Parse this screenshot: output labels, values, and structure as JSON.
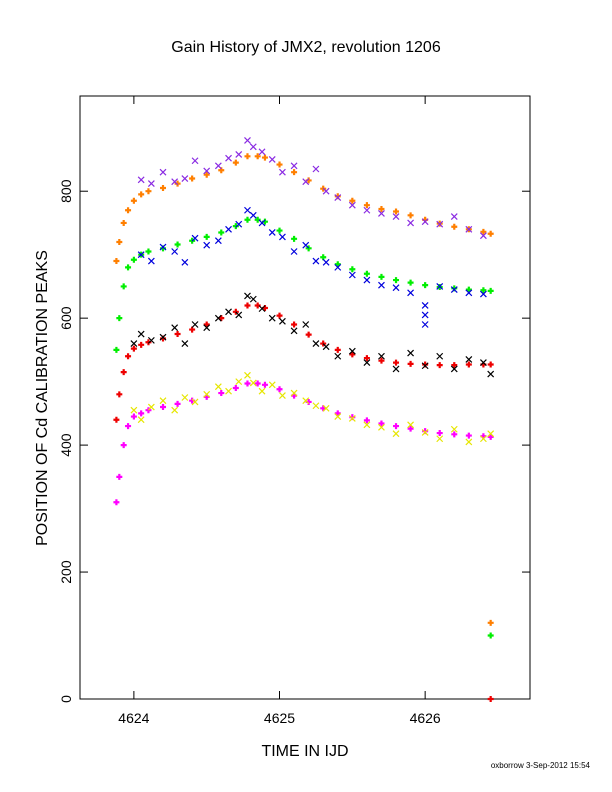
{
  "chart_data": {
    "type": "scatter",
    "title": "Gain History of JMX2, revolution 1206",
    "xlabel": "TIME IN IJD",
    "ylabel": "POSITION OF Cd CALIBRATION PEAKS",
    "xlim": [
      4623.63,
      4626.72
    ],
    "ylim": [
      0,
      950
    ],
    "x_ticks": [
      4624,
      4625,
      4626
    ],
    "x_tick_labels": [
      "4624",
      "4625",
      "4626"
    ],
    "y_ticks": [
      0,
      200,
      400,
      600,
      800
    ],
    "y_tick_labels": [
      "0",
      "200",
      "400",
      "600",
      "800"
    ],
    "grid": false,
    "legend": "none",
    "footer": "oxborrow  3-Sep-2012 15:54",
    "series": [
      {
        "color": "#ff7f00",
        "marker": "plus",
        "x": [
          4623.88,
          4623.9,
          4623.93,
          4623.96,
          4624.0,
          4624.05,
          4624.1,
          4624.2,
          4624.3,
          4624.4,
          4624.5,
          4624.6,
          4624.7,
          4624.78,
          4624.85,
          4624.9,
          4625.0,
          4625.1,
          4625.2,
          4625.3,
          4625.4,
          4625.5,
          4625.6,
          4625.7,
          4625.8,
          4625.9,
          4626.0,
          4626.1,
          4626.2,
          4626.3,
          4626.4,
          4626.45
        ],
        "y": [
          690,
          720,
          750,
          770,
          785,
          795,
          800,
          805,
          812,
          820,
          826,
          833,
          845,
          855,
          855,
          853,
          842,
          830,
          817,
          804,
          792,
          785,
          778,
          772,
          768,
          762,
          755,
          749,
          744,
          740,
          736,
          733
        ]
      },
      {
        "color": "#8a2be2",
        "marker": "x",
        "x": [
          4624.05,
          4624.12,
          4624.2,
          4624.28,
          4624.35,
          4624.42,
          4624.5,
          4624.58,
          4624.65,
          4624.72,
          4624.78,
          4624.82,
          4624.88,
          4624.95,
          4625.02,
          4625.1,
          4625.18,
          4625.25,
          4625.32,
          4625.4,
          4625.5,
          4625.6,
          4625.7,
          4625.8,
          4625.9,
          4626.0,
          4626.1,
          4626.2,
          4626.3,
          4626.4
        ],
        "y": [
          818,
          812,
          830,
          815,
          820,
          848,
          832,
          840,
          852,
          858,
          880,
          870,
          862,
          850,
          830,
          840,
          815,
          835,
          800,
          790,
          778,
          770,
          765,
          760,
          750,
          752,
          748,
          760,
          740,
          730
        ]
      },
      {
        "color": "#00ee00",
        "marker": "plus",
        "x": [
          4623.88,
          4623.9,
          4623.93,
          4623.96,
          4624.0,
          4624.05,
          4624.1,
          4624.2,
          4624.3,
          4624.4,
          4624.5,
          4624.6,
          4624.7,
          4624.78,
          4624.85,
          4624.9,
          4625.0,
          4625.1,
          4625.2,
          4625.3,
          4625.4,
          4625.5,
          4625.6,
          4625.7,
          4625.8,
          4625.9,
          4626.0,
          4626.1,
          4626.2,
          4626.3,
          4626.4,
          4626.45
        ],
        "y": [
          550,
          600,
          650,
          680,
          692,
          700,
          705,
          710,
          716,
          722,
          728,
          735,
          745,
          755,
          755,
          752,
          738,
          725,
          710,
          696,
          685,
          677,
          670,
          665,
          660,
          656,
          652,
          649,
          647,
          645,
          644,
          643
        ]
      },
      {
        "color": "#0000dd",
        "marker": "x",
        "x": [
          4624.05,
          4624.12,
          4624.2,
          4624.28,
          4624.35,
          4624.42,
          4624.5,
          4624.58,
          4624.65,
          4624.72,
          4624.78,
          4624.82,
          4624.88,
          4624.95,
          4625.02,
          4625.1,
          4625.18,
          4625.25,
          4625.32,
          4625.4,
          4625.5,
          4625.6,
          4625.7,
          4625.8,
          4625.9,
          4626.0,
          4626.0,
          4626.0,
          4626.1,
          4626.2,
          4626.3,
          4626.4
        ],
        "y": [
          700,
          690,
          712,
          705,
          688,
          726,
          715,
          722,
          740,
          748,
          770,
          762,
          750,
          735,
          728,
          705,
          715,
          690,
          688,
          680,
          668,
          660,
          652,
          648,
          640,
          620,
          605,
          590,
          650,
          645,
          640,
          638
        ]
      },
      {
        "color": "#ee0000",
        "marker": "plus",
        "x": [
          4623.88,
          4623.9,
          4623.93,
          4623.96,
          4624.0,
          4624.05,
          4624.1,
          4624.2,
          4624.3,
          4624.4,
          4624.5,
          4624.6,
          4624.7,
          4624.78,
          4624.85,
          4624.9,
          4625.0,
          4625.1,
          4625.2,
          4625.3,
          4625.4,
          4625.5,
          4625.6,
          4625.7,
          4625.8,
          4625.9,
          4626.0,
          4626.1,
          4626.2,
          4626.3,
          4626.4,
          4626.45
        ],
        "y": [
          440,
          480,
          515,
          540,
          552,
          558,
          562,
          568,
          575,
          582,
          590,
          600,
          610,
          620,
          620,
          616,
          604,
          590,
          574,
          560,
          550,
          543,
          537,
          533,
          530,
          528,
          527,
          526,
          526,
          527,
          527,
          527
        ]
      },
      {
        "color": "#000000",
        "marker": "x",
        "x": [
          4624.0,
          4624.05,
          4624.12,
          4624.2,
          4624.28,
          4624.35,
          4624.42,
          4624.5,
          4624.58,
          4624.65,
          4624.72,
          4624.78,
          4624.82,
          4624.88,
          4624.95,
          4625.02,
          4625.1,
          4625.18,
          4625.25,
          4625.32,
          4625.4,
          4625.5,
          4625.6,
          4625.7,
          4625.8,
          4625.9,
          4626.0,
          4626.1,
          4626.2,
          4626.3,
          4626.4,
          4626.45
        ],
        "y": [
          560,
          575,
          565,
          570,
          585,
          560,
          590,
          585,
          600,
          610,
          605,
          635,
          630,
          615,
          600,
          595,
          580,
          590,
          560,
          555,
          540,
          548,
          530,
          540,
          520,
          545,
          525,
          540,
          520,
          535,
          530,
          512
        ]
      },
      {
        "color": "#ff00ff",
        "marker": "plus",
        "x": [
          4623.88,
          4623.9,
          4623.93,
          4623.96,
          4624.0,
          4624.05,
          4624.1,
          4624.2,
          4624.3,
          4624.4,
          4624.5,
          4624.6,
          4624.7,
          4624.78,
          4624.85,
          4624.9,
          4625.0,
          4625.1,
          4625.2,
          4625.3,
          4625.4,
          4625.5,
          4625.6,
          4625.7,
          4625.8,
          4625.9,
          4626.0,
          4626.1,
          4626.2,
          4626.3,
          4626.4,
          4626.45
        ],
        "y": [
          310,
          350,
          400,
          430,
          445,
          450,
          455,
          460,
          465,
          470,
          476,
          482,
          490,
          497,
          497,
          495,
          488,
          478,
          468,
          458,
          450,
          444,
          439,
          434,
          430,
          426,
          422,
          419,
          417,
          415,
          414,
          413
        ]
      },
      {
        "color": "#e6e600",
        "marker": "x",
        "x": [
          4624.0,
          4624.05,
          4624.12,
          4624.2,
          4624.28,
          4624.35,
          4624.42,
          4624.5,
          4624.58,
          4624.65,
          4624.72,
          4624.78,
          4624.82,
          4624.88,
          4624.95,
          4625.02,
          4625.1,
          4625.18,
          4625.25,
          4625.32,
          4625.4,
          4625.5,
          4625.6,
          4625.7,
          4625.8,
          4625.9,
          4626.0,
          4626.1,
          4626.2,
          4626.3,
          4626.4,
          4626.45
        ],
        "y": [
          455,
          440,
          460,
          470,
          455,
          475,
          468,
          480,
          492,
          485,
          500,
          510,
          498,
          485,
          495,
          478,
          482,
          470,
          462,
          458,
          445,
          442,
          432,
          428,
          418,
          432,
          420,
          410,
          425,
          405,
          410,
          418
        ]
      },
      {
        "color": "#ff7f00",
        "marker": "plus",
        "x": [
          4626.45
        ],
        "y": [
          120
        ]
      },
      {
        "color": "#00ee00",
        "marker": "plus",
        "x": [
          4626.45
        ],
        "y": [
          100
        ]
      },
      {
        "color": "#ee0000",
        "marker": "plus",
        "x": [
          4626.45
        ],
        "y": [
          0
        ]
      }
    ]
  }
}
